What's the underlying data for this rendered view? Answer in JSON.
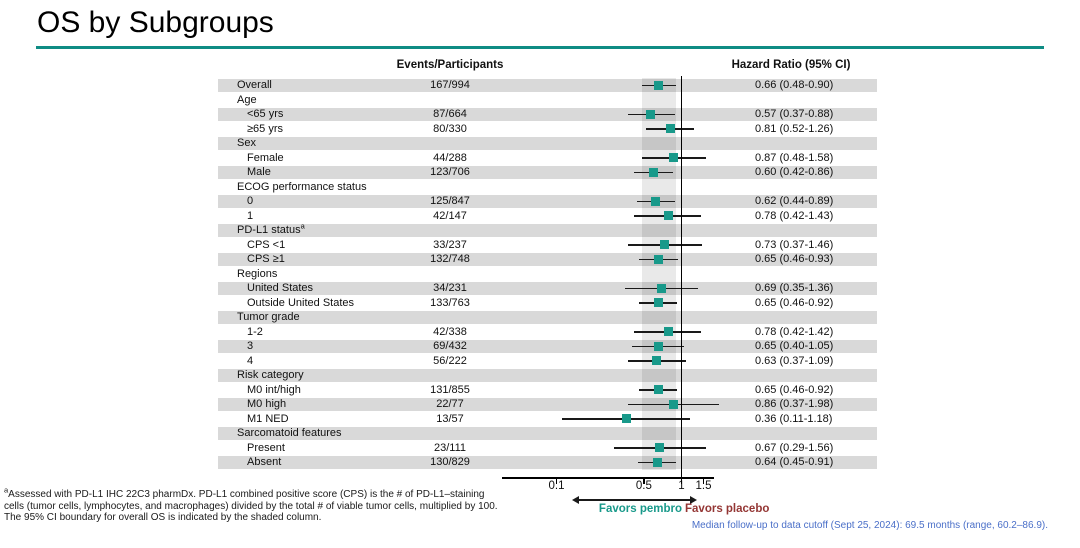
{
  "title": "OS by Subgroups",
  "columns": {
    "events_header": "Events/Participants",
    "hr_header": "Hazard Ratio (95% CI)"
  },
  "colors": {
    "accent_teal": "#18998a",
    "rule_teal": "#0e8c84",
    "favors_placebo_red": "#943634",
    "followup_blue": "#4a6fc8",
    "row_band_gray": "#d9d9d9"
  },
  "chart_data": {
    "type": "forest",
    "x_scale": "log",
    "x_ticks": [
      "0.1",
      "0.5",
      "1",
      "1.5"
    ],
    "reference_line": 1,
    "shaded_band": {
      "low": 0.48,
      "high": 0.9,
      "meaning": "95% CI boundary for overall OS"
    },
    "favors_left": "Favors pembro",
    "favors_right": "Favors placebo",
    "rows": [
      {
        "label": "Overall",
        "indent": 0,
        "events": "167/994",
        "hr": 0.66,
        "lo": 0.48,
        "hi": 0.9,
        "hr_text": "0.66 (0.48-0.90)"
      },
      {
        "label": "Age",
        "indent": 0,
        "header": true
      },
      {
        "label": "<65 yrs",
        "indent": 1,
        "events": "87/664",
        "hr": 0.57,
        "lo": 0.37,
        "hi": 0.88,
        "hr_text": "0.57 (0.37-0.88)"
      },
      {
        "label": "≥65 yrs",
        "indent": 1,
        "events": "80/330",
        "hr": 0.81,
        "lo": 0.52,
        "hi": 1.26,
        "hr_text": "0.81 (0.52-1.26)"
      },
      {
        "label": "Sex",
        "indent": 0,
        "header": true
      },
      {
        "label": "Female",
        "indent": 1,
        "events": "44/288",
        "hr": 0.87,
        "lo": 0.48,
        "hi": 1.58,
        "hr_text": "0.87 (0.48-1.58)"
      },
      {
        "label": "Male",
        "indent": 1,
        "events": "123/706",
        "hr": 0.6,
        "lo": 0.42,
        "hi": 0.86,
        "hr_text": "0.60 (0.42-0.86)"
      },
      {
        "label": "ECOG performance status",
        "indent": 0,
        "header": true
      },
      {
        "label": "0",
        "indent": 1,
        "events": "125/847",
        "hr": 0.62,
        "lo": 0.44,
        "hi": 0.89,
        "hr_text": "0.62 (0.44-0.89)"
      },
      {
        "label": "1",
        "indent": 1,
        "events": "42/147",
        "hr": 0.78,
        "lo": 0.42,
        "hi": 1.43,
        "hr_text": "0.78 (0.42-1.43)"
      },
      {
        "label": "PD-L1 status",
        "label_sup": "a",
        "indent": 0,
        "header": true
      },
      {
        "label": "CPS <1",
        "indent": 1,
        "events": "33/237",
        "hr": 0.73,
        "lo": 0.37,
        "hi": 1.46,
        "hr_text": "0.73 (0.37-1.46)"
      },
      {
        "label": "CPS ≥1",
        "indent": 1,
        "events": "132/748",
        "hr": 0.65,
        "lo": 0.46,
        "hi": 0.93,
        "hr_text": "0.65 (0.46-0.93)"
      },
      {
        "label": "Regions",
        "indent": 0,
        "header": true
      },
      {
        "label": "United States",
        "indent": 1,
        "events": "34/231",
        "hr": 0.69,
        "lo": 0.35,
        "hi": 1.36,
        "hr_text": "0.69 (0.35-1.36)"
      },
      {
        "label": "Outside United States",
        "indent": 1,
        "events": "133/763",
        "hr": 0.65,
        "lo": 0.46,
        "hi": 0.92,
        "hr_text": "0.65 (0.46-0.92)"
      },
      {
        "label": "Tumor grade",
        "indent": 0,
        "header": true
      },
      {
        "label": "1-2",
        "indent": 1,
        "events": "42/338",
        "hr": 0.78,
        "lo": 0.42,
        "hi": 1.42,
        "hr_text": "0.78 (0.42-1.42)"
      },
      {
        "label": "3",
        "indent": 1,
        "events": "69/432",
        "hr": 0.65,
        "lo": 0.4,
        "hi": 1.05,
        "hr_text": "0.65 (0.40-1.05)"
      },
      {
        "label": "4",
        "indent": 1,
        "events": "56/222",
        "hr": 0.63,
        "lo": 0.37,
        "hi": 1.09,
        "hr_text": "0.63 (0.37-1.09)"
      },
      {
        "label": "Risk category",
        "indent": 0,
        "header": true
      },
      {
        "label": "M0 int/high",
        "indent": 1,
        "events": "131/855",
        "hr": 0.65,
        "lo": 0.46,
        "hi": 0.92,
        "hr_text": "0.65 (0.46-0.92)"
      },
      {
        "label": "M0 high",
        "indent": 1,
        "events": "22/77",
        "hr": 0.86,
        "lo": 0.37,
        "hi": 1.98,
        "hr_text": "0.86 (0.37-1.98)"
      },
      {
        "label": "M1 NED",
        "indent": 1,
        "events": "13/57",
        "hr": 0.36,
        "lo": 0.11,
        "hi": 1.18,
        "hr_text": "0.36 (0.11-1.18)"
      },
      {
        "label": "Sarcomatoid features",
        "indent": 0,
        "header": true
      },
      {
        "label": "Present",
        "indent": 1,
        "events": "23/111",
        "hr": 0.67,
        "lo": 0.29,
        "hi": 1.56,
        "hr_text": "0.67 (0.29-1.56)"
      },
      {
        "label": "Absent",
        "indent": 1,
        "events": "130/829",
        "hr": 0.64,
        "lo": 0.45,
        "hi": 0.91,
        "hr_text": "0.64 (0.45-0.91)"
      }
    ]
  },
  "footnote": {
    "sup": "a",
    "lines": [
      "Assessed with PD-L1 IHC 22C3 pharmDx. PD-L1 combined positive score (CPS) is the # of PD-L1–staining",
      "cells (tumor cells, lymphocytes, and macrophages) divided by the total # of viable tumor cells, multiplied by 100.",
      "The 95% CI boundary for overall OS is indicated by the shaded column."
    ]
  },
  "followup_note": "Median follow-up to data cutoff (Sept 25, 2024): 69.5 months (range, 60.2–86.9)."
}
